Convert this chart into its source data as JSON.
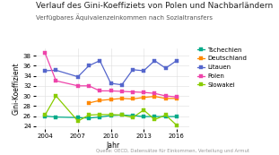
{
  "title": "Verlauf des Gini-Koeffiziets von Polen und Nachbarländern",
  "subtitle": "Verfügbares Äquivalenzeinkommen nach Sozialtransfers",
  "xlabel": "Jahr",
  "ylabel": "Gini-Koeffizient",
  "source": "Quelle: OECD, Datensätze für Einkommen, Verteilung und Armut",
  "years": [
    2004,
    2005,
    2007,
    2008,
    2009,
    2010,
    2011,
    2012,
    2013,
    2014,
    2015,
    2016
  ],
  "series": {
    "Tschechien": {
      "color": "#00aa88",
      "values": [
        26.0,
        25.8,
        25.7,
        25.6,
        25.8,
        26.1,
        26.2,
        26.1,
        25.9,
        25.9,
        25.9,
        25.9
      ]
    },
    "Deutschland": {
      "color": "#ff8800",
      "values": [
        null,
        null,
        null,
        28.6,
        29.1,
        29.3,
        29.5,
        29.4,
        29.7,
        29.9,
        29.5,
        29.5
      ]
    },
    "Litauen": {
      "color": "#5566cc",
      "values": [
        35.0,
        35.1,
        33.8,
        36.0,
        37.0,
        32.5,
        32.2,
        35.2,
        35.0,
        37.0,
        35.5,
        37.0
      ]
    },
    "Polen": {
      "color": "#ee44aa",
      "values": [
        38.5,
        33.0,
        32.0,
        32.0,
        31.0,
        31.0,
        30.9,
        30.8,
        30.7,
        30.5,
        30.0,
        29.8
      ]
    },
    "Slowakei": {
      "color": "#88cc00",
      "values": [
        26.2,
        30.0,
        25.0,
        26.2,
        26.3,
        26.3,
        26.2,
        25.7,
        27.2,
        25.3,
        26.2,
        24.2
      ]
    }
  },
  "xlim": [
    2003.2,
    2017.2
  ],
  "ylim": [
    23.5,
    39.5
  ],
  "yticks": [
    24,
    26,
    28,
    30,
    32,
    34,
    36,
    38
  ],
  "xticks": [
    2004,
    2007,
    2010,
    2013,
    2016
  ],
  "background_color": "#ffffff",
  "grid_color": "#dddddd",
  "title_fontsize": 6.5,
  "subtitle_fontsize": 5.0,
  "axis_label_fontsize": 5.5,
  "tick_fontsize": 5.0,
  "legend_fontsize": 5.0,
  "source_fontsize": 3.8
}
